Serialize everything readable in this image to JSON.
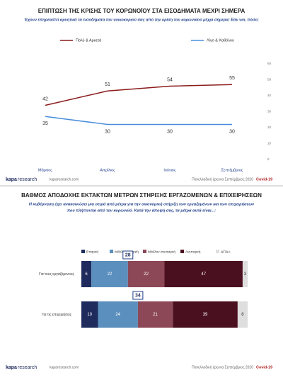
{
  "chart_data": [
    {
      "type": "line",
      "title": "ΕΠΙΠΤΩΣΗ ΤΗΣ ΚΡΙΣΗΣ ΤΟΥ ΚΟΡΩΝΟΪΟΥ ΣΤΑ ΕΙΣΟΔΗΜΑΤΑ ΜΕΧΡΙ ΣΗΜΕΡΑ",
      "subtitle": "Έχουν επηρεαστεί αρνητικά τα εισοδήματα του νοικοκυριού σας από την κρίση του κορωνοϊού μέχρι σήμερα; Εάν ναι, πόσο;",
      "categories": [
        "Μάρτιος",
        "Απρίλιος",
        "Ιούνιος",
        "Σεπτέμβριος"
      ],
      "series": [
        {
          "name": "Πολύ & Αρκετά",
          "color": "#8b1c1c",
          "values": [
            42,
            51,
            54,
            55
          ]
        },
        {
          "name": "Λίγο & Καθόλου",
          "color": "#4a8fdc",
          "values": [
            35,
            30,
            30,
            30
          ]
        }
      ],
      "ylim": [
        8,
        68
      ],
      "yticks": [
        8,
        18,
        28,
        38,
        48,
        58,
        68
      ],
      "grid": false
    },
    {
      "type": "stacked-barh",
      "title": "ΒΑΘΜΟΣ ΑΠΟΔΟΧΗΣ ΕΚΤΑΚΤΩΝ ΜΕΤΡΩΝ ΣΤΗΡΙΞΗΣ ΕΡΓΑΖΟΜΕΝΩΝ & ΕΠΙΧΕΙΡΗΣΕΩΝ",
      "subtitle": [
        "Η κυβέρνηση έχει ανακοινώσει μια σειρά από μέτρα για την οικονομική στήριξη των εργαζομένων και των επιχειρήσεων",
        "που πλήττονται από τον κορωνοϊό. Κατά την άποψή σας, τα μέτρα αυτά είναι...:"
      ],
      "categories": [
        "Για τους εργαζόμενους",
        "Για τις επιχειρήσεις"
      ],
      "series": [
        {
          "name": "Επαρκή",
          "color": "#1e2b5c",
          "values": [
            6,
            10
          ]
        },
        {
          "name": "Μάλλον επαρκή",
          "color": "#5b8fbd",
          "values": [
            22,
            24
          ]
        },
        {
          "name": "Μάλλον ανεπαρκή",
          "color": "#8c4857",
          "values": [
            22,
            21
          ]
        },
        {
          "name": "Ανεπαρκή",
          "color": "#4b1020",
          "values": [
            47,
            39
          ]
        },
        {
          "name": "ΔΓ/ΔΑ",
          "color": "#dedede",
          "values": [
            3,
            6
          ]
        }
      ],
      "annotations": [
        28,
        34
      ],
      "xlim": [
        0,
        100
      ]
    }
  ],
  "footer": {
    "brand": "kapa",
    "brand2": "research",
    "site": "kaparesearch.com",
    "survey": "Πανελλαδική έρευνα Σεπτέμβριος 2020",
    "tag": "Covid-19"
  }
}
